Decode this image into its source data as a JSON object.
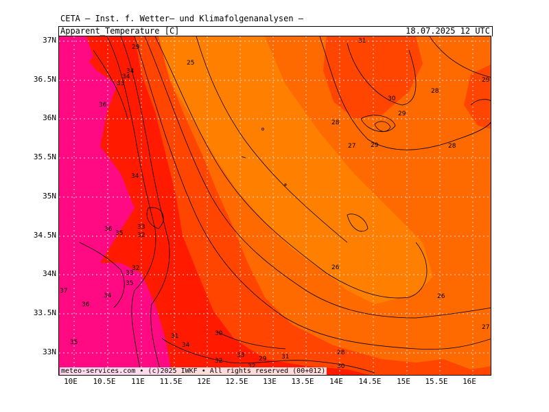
{
  "header": {
    "title": "CETA — Inst. f. Wetter— und Klimafolgenanalysen —",
    "parameter": "Apparent_Temperature [C]",
    "datetime": "18.07.2025 12 UTC"
  },
  "credit": "meteo-services.com • (c)2025 IWKF • All rights reserved (00+012)",
  "axes": {
    "lat_labels": [
      "37N",
      "36.5N",
      "36N",
      "35.5N",
      "35N",
      "34.5N",
      "34N",
      "33.5N",
      "33N"
    ],
    "lon_labels": [
      "10E",
      "10.5E",
      "11E",
      "11.5E",
      "12E",
      "12.5E",
      "13E",
      "13.5E",
      "14E",
      "14.5E",
      "15E",
      "15.5E",
      "16E"
    ]
  },
  "colors": {
    "t24_26": "#ff8000",
    "t26_28": "#ff6a00",
    "t28_30": "#ff4500",
    "t30_34": "#ff1a00",
    "t34_plus": "#ff0a82",
    "contour": "#000000",
    "grid": "#d8d8d8"
  },
  "contour_labels": [
    {
      "text": "29"
    },
    {
      "text": "25"
    },
    {
      "text": "34"
    },
    {
      "text": "34"
    },
    {
      "text": "33"
    },
    {
      "text": "36"
    },
    {
      "text": "34"
    },
    {
      "text": "31"
    },
    {
      "text": "29"
    },
    {
      "text": "30"
    },
    {
      "text": "28"
    },
    {
      "text": "29"
    },
    {
      "text": "28"
    },
    {
      "text": "27"
    },
    {
      "text": "29"
    },
    {
      "text": "28"
    },
    {
      "text": "36"
    },
    {
      "text": "35"
    },
    {
      "text": "33"
    },
    {
      "text": "32"
    },
    {
      "text": "32"
    },
    {
      "text": "33"
    },
    {
      "text": "35"
    },
    {
      "text": "37"
    },
    {
      "text": "34"
    },
    {
      "text": "36"
    },
    {
      "text": "26"
    },
    {
      "text": "26"
    },
    {
      "text": "27"
    },
    {
      "text": "35"
    },
    {
      "text": "31"
    },
    {
      "text": "34"
    },
    {
      "text": "30"
    },
    {
      "text": "32"
    },
    {
      "text": "33"
    },
    {
      "text": "29"
    },
    {
      "text": "32"
    },
    {
      "text": "31"
    },
    {
      "text": "28"
    },
    {
      "text": "30"
    }
  ]
}
